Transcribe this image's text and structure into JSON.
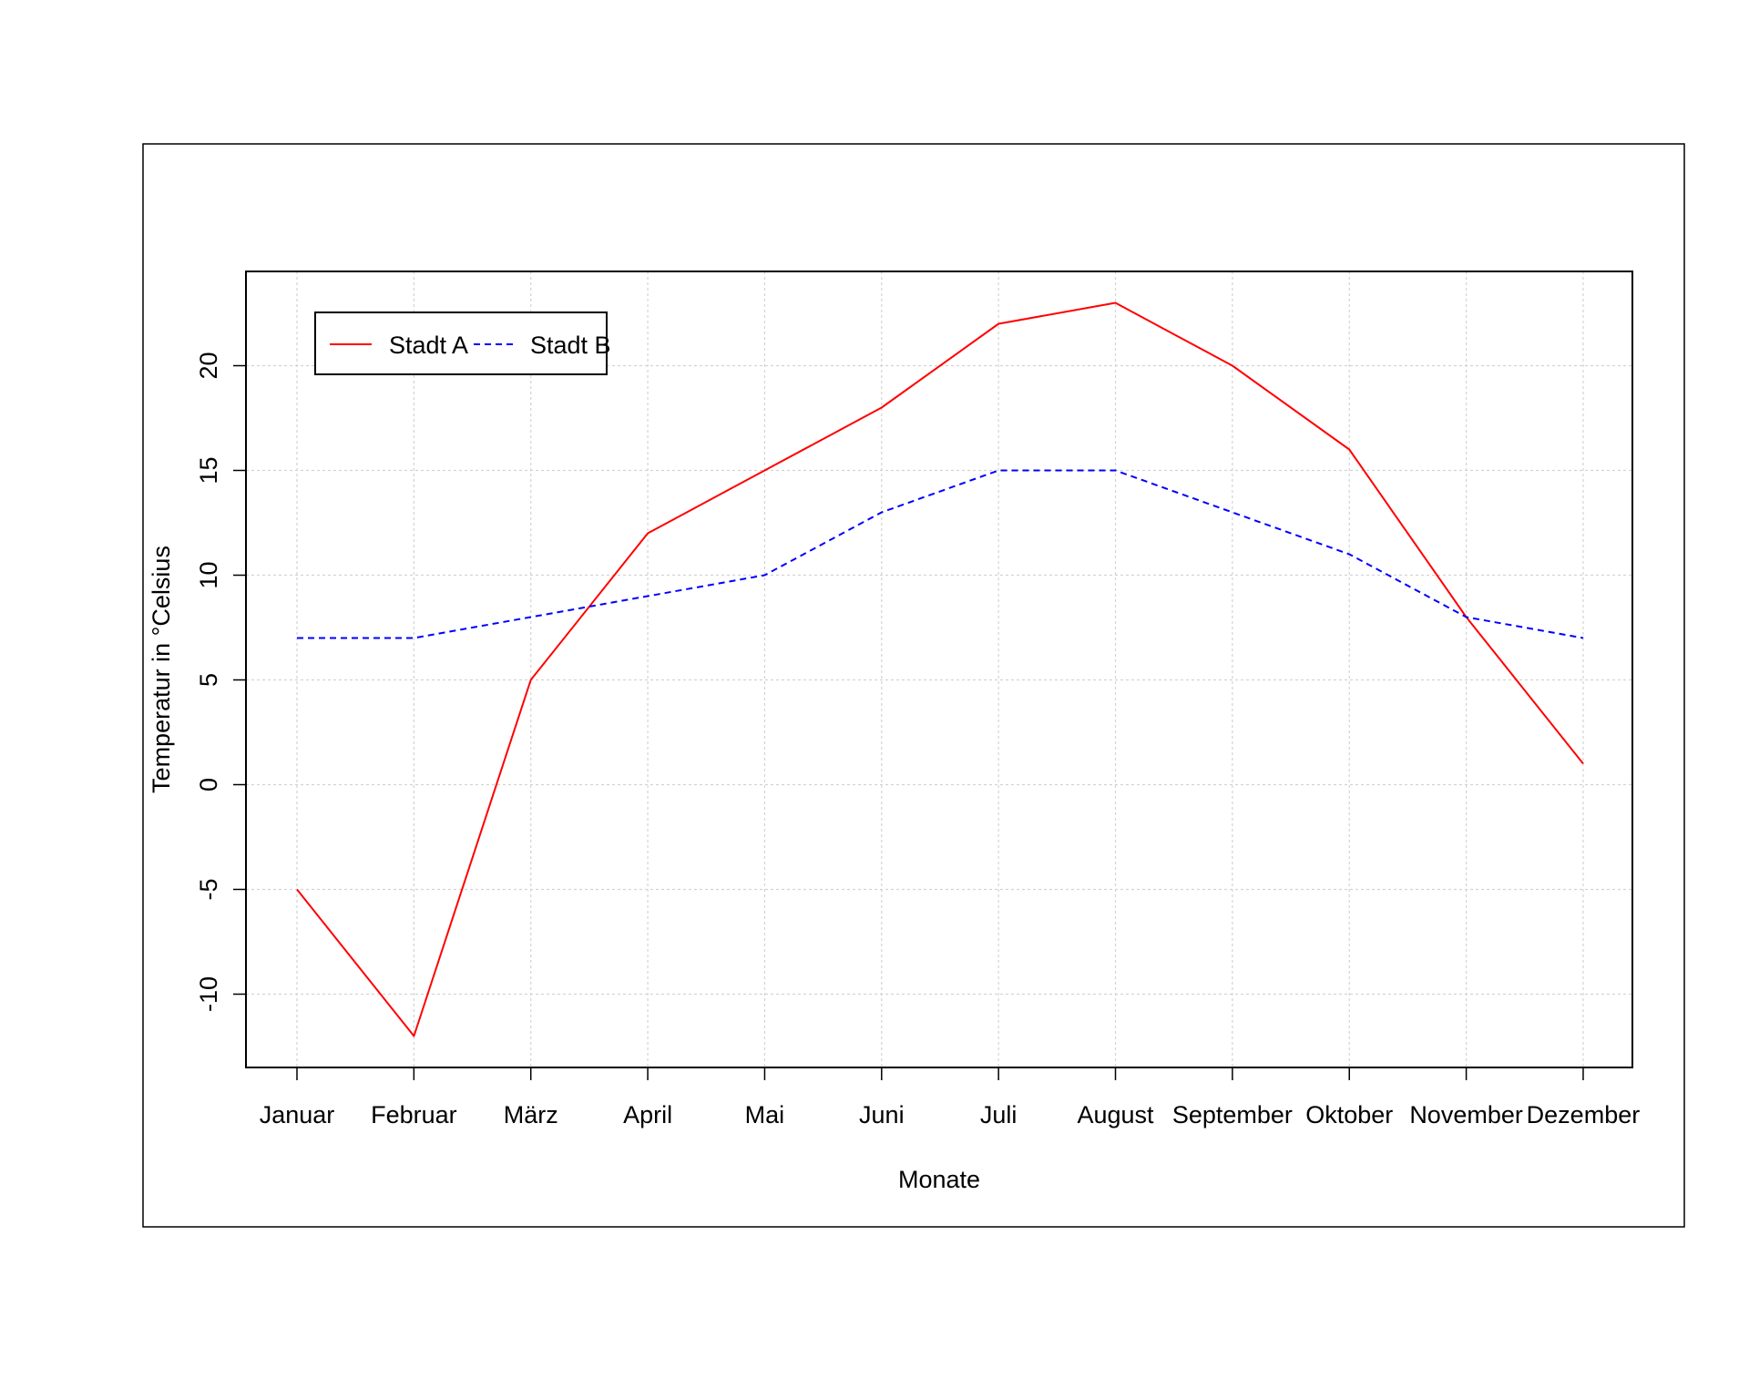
{
  "chart_data": {
    "type": "line",
    "categories": [
      "Januar",
      "Februar",
      "März",
      "April",
      "Mai",
      "Juni",
      "Juli",
      "August",
      "September",
      "Oktober",
      "November",
      "Dezember"
    ],
    "series": [
      {
        "name": "Stadt A",
        "color": "#ff0000",
        "line_style": "solid",
        "values": [
          -5,
          -12,
          5,
          12,
          15,
          18,
          22,
          23,
          20,
          16,
          8,
          1
        ]
      },
      {
        "name": "Stadt B",
        "color": "#0000ff",
        "line_style": "dashed",
        "values": [
          7,
          7,
          8,
          9,
          10,
          13,
          15,
          15,
          13,
          11,
          8,
          7
        ]
      }
    ],
    "xlabel": "Monate",
    "ylabel": "Temperatur in °Celsius",
    "ylim": [
      -13.5,
      24.5
    ],
    "yticks": [
      -10,
      -5,
      0,
      5,
      10,
      15,
      20
    ],
    "ytick_labels": [
      "-10",
      "-5",
      "0",
      "5",
      "10",
      "15",
      "20"
    ],
    "grid": true,
    "legend_position": "top-left"
  }
}
